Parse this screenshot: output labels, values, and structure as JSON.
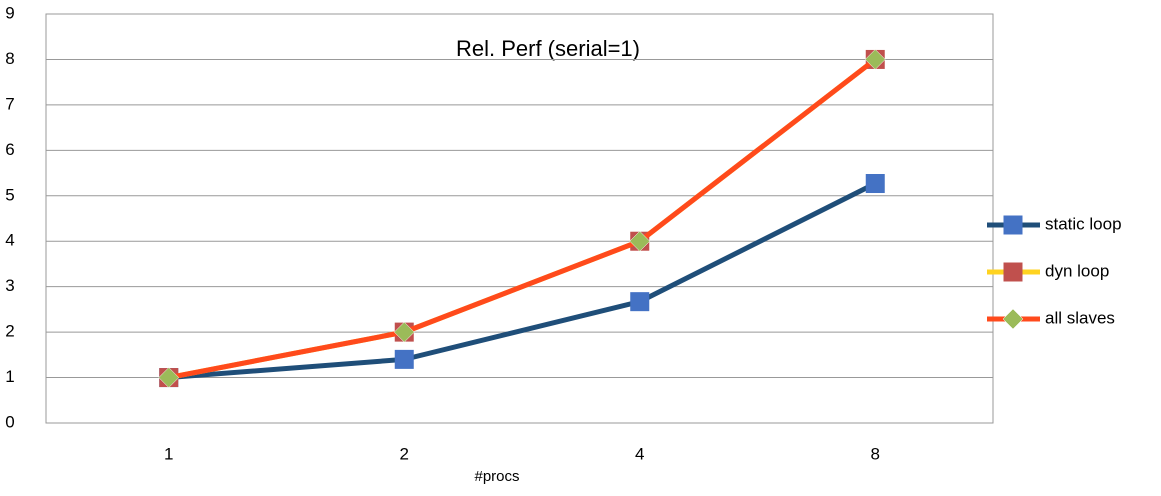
{
  "chart_data": {
    "type": "line",
    "title": "Rel. Perf (serial=1)",
    "x_label": "#procs",
    "categories": [
      "1",
      "2",
      "4",
      "8"
    ],
    "series": [
      {
        "name": "static loop",
        "color": "#1f4e79",
        "marker_color": "#4472c4",
        "marker": "square",
        "values": [
          1,
          1.4,
          2.67,
          5.27
        ]
      },
      {
        "name": "dyn loop",
        "color": "#ffd320",
        "marker_color": "#c0504d",
        "marker": "square",
        "values": [
          1,
          2,
          4,
          8
        ]
      },
      {
        "name": "all slaves",
        "color": "#ff4a1c",
        "marker_color": "#9bbb59",
        "marker": "diamond",
        "values": [
          1,
          2,
          4,
          8
        ]
      }
    ],
    "ylim": [
      0,
      9
    ],
    "yticks": [
      0,
      1,
      2,
      3,
      4,
      5,
      6,
      7,
      8,
      9
    ],
    "grid": true,
    "legend": "right"
  }
}
